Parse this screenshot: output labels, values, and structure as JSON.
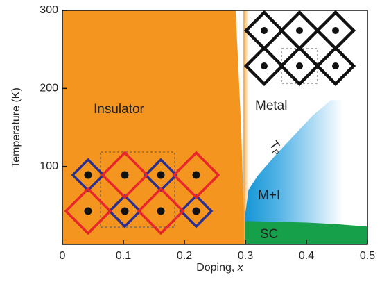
{
  "chart_data": {
    "type": "phase",
    "x_label": "Doping,",
    "x_label_var": "x",
    "y_label": "Temperature (K)",
    "xlim": [
      0,
      0.5
    ],
    "ylim": [
      0,
      300
    ],
    "xticks": [
      0,
      0.1,
      0.2,
      0.3,
      0.4,
      0.5
    ],
    "yticks": [
      100,
      200,
      300
    ],
    "regions": [
      {
        "name": "Insulator",
        "color": "#f4951f",
        "x": [
          0.284,
          0.287,
          0.29,
          0.293,
          0.295,
          0.297,
          0.298
        ],
        "y": [
          300,
          250,
          200,
          150,
          100,
          50,
          0
        ]
      },
      {
        "name": "M+I",
        "color": "#1596d6",
        "x": [
          0.3,
          0.305,
          0.32,
          0.35,
          0.38,
          0.41,
          0.44
        ],
        "y": [
          40,
          70,
          88,
          115,
          140,
          165,
          185
        ]
      },
      {
        "name": "SC",
        "color": "#17a04a",
        "x": [
          0.3,
          0.35,
          0.4,
          0.45,
          0.5
        ],
        "y": [
          30,
          29,
          28,
          26,
          23
        ]
      }
    ],
    "metal_label": "Metal",
    "tp_label": "T",
    "tp_sub": "P"
  }
}
